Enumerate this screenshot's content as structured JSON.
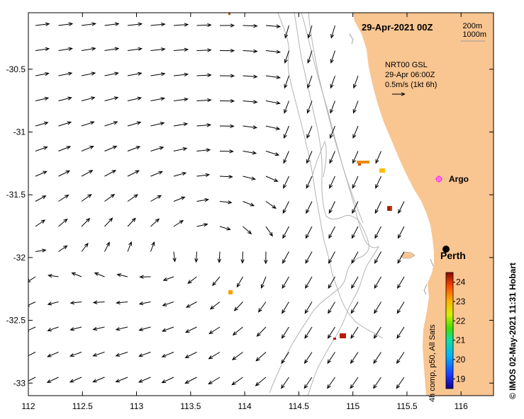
{
  "map": {
    "date_label": "29-Apr-2021 00Z",
    "depth_contours": [
      "200m",
      "1000m"
    ],
    "model": {
      "line1": "NRT00 GSL",
      "line2": "29-Apr 06:00Z",
      "line3": "0.5m/s (1kt 6h)"
    },
    "places": [
      {
        "name": "Perth",
        "lon": 115.86,
        "lat": -31.95
      },
      {
        "name": "Argo",
        "lon": 115.82,
        "lat": -31.4
      }
    ],
    "colorbar": {
      "label": "4h comp, p50, All Sats",
      "min": 18.5,
      "max": 24.5,
      "ticks": [
        "19",
        "20",
        "21",
        "22",
        "23",
        "24"
      ]
    },
    "credit": "© IMOS 02-May-2021 11:31 Hobart",
    "axes": {
      "x_ticks": [
        "112",
        "112.5",
        "113",
        "113.5",
        "114",
        "114.5",
        "115",
        "115.5",
        "116"
      ],
      "y_ticks": [
        "-30.5",
        "-31",
        "-31.5",
        "-32",
        "-32.5",
        "-33"
      ],
      "lon_range": [
        112,
        116.3
      ],
      "lat_range": [
        -33.1,
        -30.05
      ]
    }
  },
  "colors": {
    "land": "#f9c591",
    "ocean": "#ffffff",
    "contour": "#b3b3b3",
    "argo": "#ff33ff"
  }
}
